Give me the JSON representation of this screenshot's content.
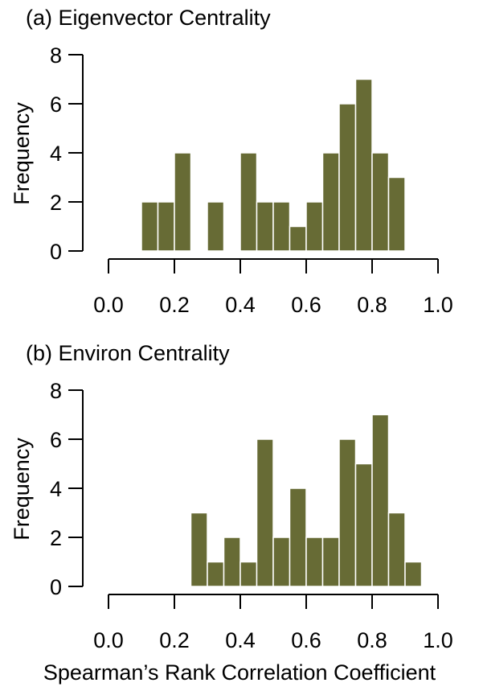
{
  "colors": {
    "bar": "#676b35",
    "bar_edge": "#ffffff",
    "axis": "#000000",
    "background": "#ffffff"
  },
  "figure": {
    "shared_xlabel": "Spearman’s Rank Correlation Coefficient"
  },
  "chart_data": [
    {
      "type": "bar",
      "title": "(a) Eigenvector Centrality",
      "xlabel": "",
      "ylabel": "Frequency",
      "bin_width": 0.05,
      "bins": [
        {
          "start": 0.1,
          "end": 0.15,
          "count": 2
        },
        {
          "start": 0.15,
          "end": 0.2,
          "count": 2
        },
        {
          "start": 0.2,
          "end": 0.25,
          "count": 4
        },
        {
          "start": 0.25,
          "end": 0.3,
          "count": 0
        },
        {
          "start": 0.3,
          "end": 0.35,
          "count": 2
        },
        {
          "start": 0.35,
          "end": 0.4,
          "count": 0
        },
        {
          "start": 0.4,
          "end": 0.45,
          "count": 4
        },
        {
          "start": 0.45,
          "end": 0.5,
          "count": 2
        },
        {
          "start": 0.5,
          "end": 0.55,
          "count": 2
        },
        {
          "start": 0.55,
          "end": 0.6,
          "count": 1
        },
        {
          "start": 0.6,
          "end": 0.65,
          "count": 2
        },
        {
          "start": 0.65,
          "end": 0.7,
          "count": 4
        },
        {
          "start": 0.7,
          "end": 0.75,
          "count": 6
        },
        {
          "start": 0.75,
          "end": 0.8,
          "count": 7
        },
        {
          "start": 0.8,
          "end": 0.85,
          "count": 4
        },
        {
          "start": 0.85,
          "end": 0.9,
          "count": 3
        }
      ],
      "xlim": [
        0.0,
        1.0
      ],
      "ylim": [
        0,
        8
      ],
      "xticks": [
        0.0,
        0.2,
        0.4,
        0.6,
        0.8,
        1.0
      ],
      "xtick_labels": [
        "0.0",
        "0.2",
        "0.4",
        "0.6",
        "0.8",
        "1.0"
      ],
      "yticks": [
        0,
        2,
        4,
        6,
        8
      ],
      "ytick_labels": [
        "0",
        "2",
        "4",
        "6",
        "8"
      ],
      "grid": false,
      "legend": "none"
    },
    {
      "type": "bar",
      "title": "(b) Environ Centrality",
      "xlabel": "Spearman’s Rank Correlation Coefficient",
      "ylabel": "Frequency",
      "bin_width": 0.05,
      "bins": [
        {
          "start": 0.25,
          "end": 0.3,
          "count": 3
        },
        {
          "start": 0.3,
          "end": 0.35,
          "count": 1
        },
        {
          "start": 0.35,
          "end": 0.4,
          "count": 2
        },
        {
          "start": 0.4,
          "end": 0.45,
          "count": 1
        },
        {
          "start": 0.45,
          "end": 0.5,
          "count": 6
        },
        {
          "start": 0.5,
          "end": 0.55,
          "count": 2
        },
        {
          "start": 0.55,
          "end": 0.6,
          "count": 4
        },
        {
          "start": 0.6,
          "end": 0.65,
          "count": 2
        },
        {
          "start": 0.65,
          "end": 0.7,
          "count": 2
        },
        {
          "start": 0.7,
          "end": 0.75,
          "count": 6
        },
        {
          "start": 0.75,
          "end": 0.8,
          "count": 5
        },
        {
          "start": 0.8,
          "end": 0.85,
          "count": 7
        },
        {
          "start": 0.85,
          "end": 0.9,
          "count": 3
        },
        {
          "start": 0.9,
          "end": 0.95,
          "count": 1
        }
      ],
      "xlim": [
        0.0,
        1.0
      ],
      "ylim": [
        0,
        8
      ],
      "xticks": [
        0.0,
        0.2,
        0.4,
        0.6,
        0.8,
        1.0
      ],
      "xtick_labels": [
        "0.0",
        "0.2",
        "0.4",
        "0.6",
        "0.8",
        "1.0"
      ],
      "yticks": [
        0,
        2,
        4,
        6,
        8
      ],
      "ytick_labels": [
        "0",
        "2",
        "4",
        "6",
        "8"
      ],
      "grid": false,
      "legend": "none"
    }
  ]
}
